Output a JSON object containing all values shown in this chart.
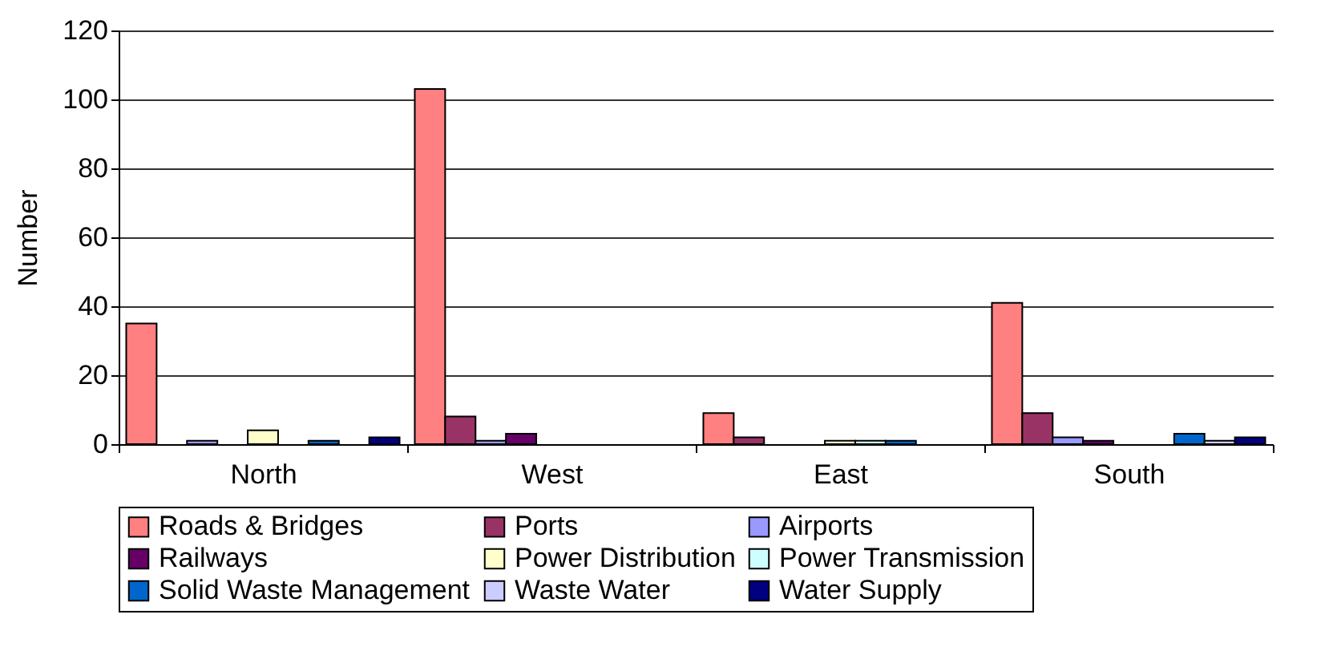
{
  "chart_data": {
    "type": "bar",
    "ylabel": "Number",
    "categories": [
      "North",
      "West",
      "East",
      "South"
    ],
    "series": [
      {
        "name": "Roads & Bridges",
        "color": "#ff8080",
        "values": [
          35,
          103,
          9,
          41
        ]
      },
      {
        "name": "Ports",
        "color": "#993366",
        "values": [
          0,
          8,
          2,
          9
        ]
      },
      {
        "name": "Airports",
        "color": "#9999ff",
        "values": [
          1,
          1,
          0,
          2
        ]
      },
      {
        "name": "Railways",
        "color": "#660066",
        "values": [
          0,
          3,
          0,
          1
        ]
      },
      {
        "name": "Power Distribution",
        "color": "#ffffcc",
        "values": [
          4,
          0,
          1,
          0
        ]
      },
      {
        "name": "Power Transmission",
        "color": "#ccffff",
        "values": [
          0,
          0,
          1,
          0
        ]
      },
      {
        "name": "Solid Waste Management",
        "color": "#0066cc",
        "values": [
          1,
          0,
          1,
          3
        ]
      },
      {
        "name": "Waste Water",
        "color": "#ccccff",
        "values": [
          0,
          0,
          0,
          1
        ]
      },
      {
        "name": "Water Supply",
        "color": "#000080",
        "values": [
          2,
          0,
          0,
          2
        ]
      }
    ],
    "ylim": [
      0,
      120
    ],
    "yticks": [
      0,
      20,
      40,
      60,
      80,
      100,
      120
    ],
    "grid": "y",
    "legend": "bottom"
  }
}
